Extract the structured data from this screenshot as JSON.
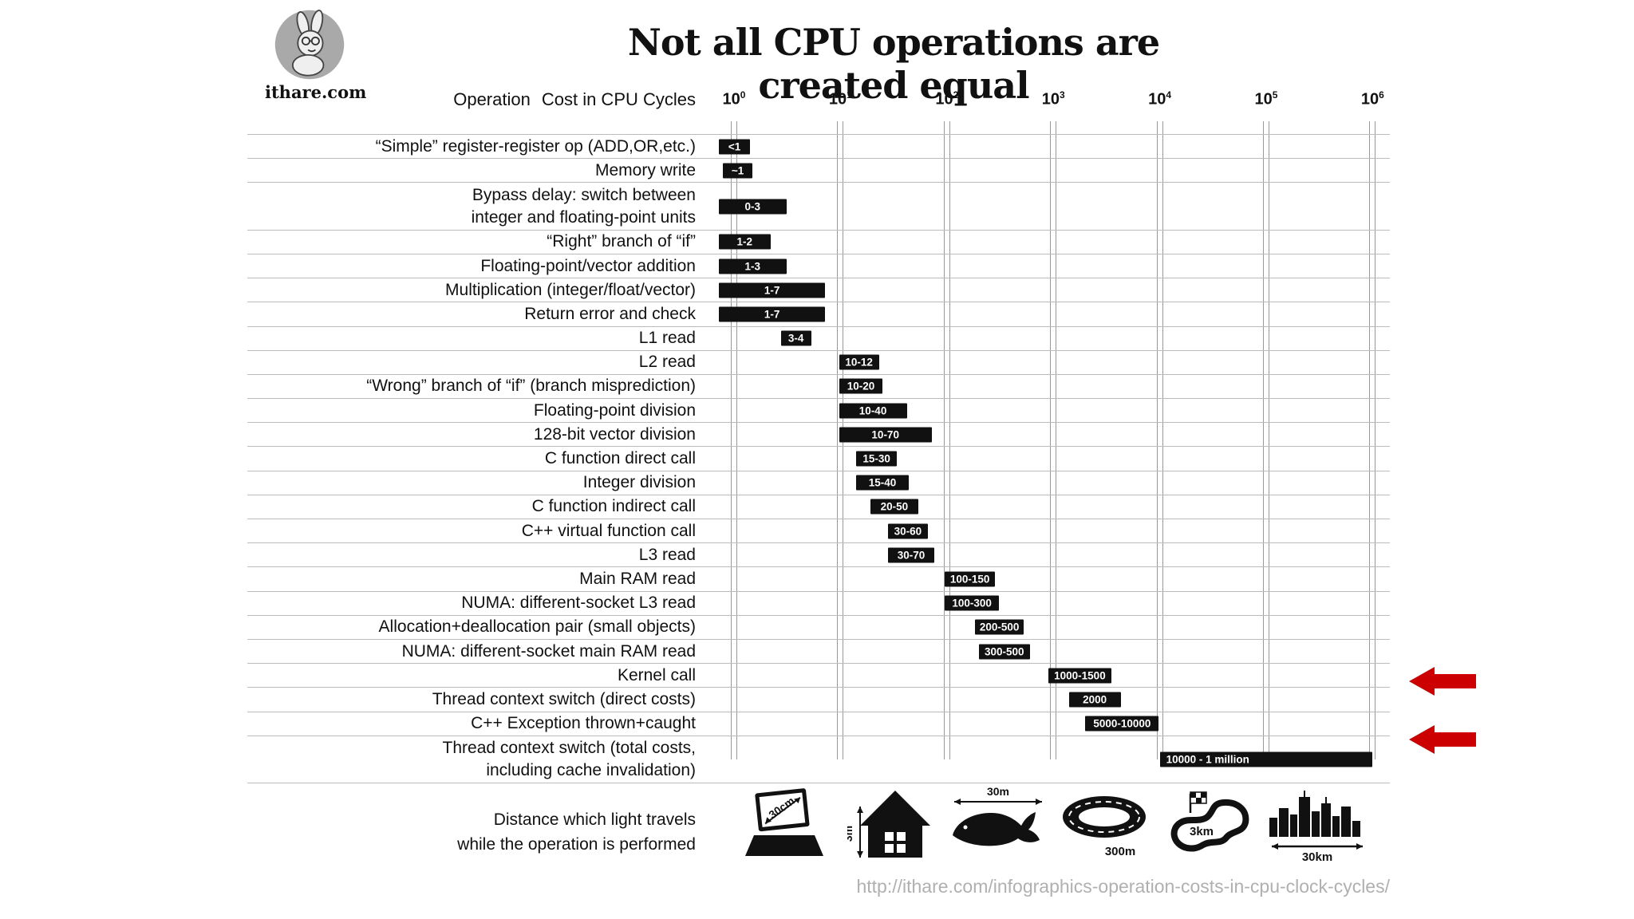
{
  "logo": {
    "text": "ithare.com"
  },
  "title": "Not all CPU operations are created equal",
  "header": {
    "operation": "Operation",
    "cost": "Cost in CPU Cycles"
  },
  "axis": {
    "base": "10",
    "exponents": [
      "0",
      "1",
      "2",
      "3",
      "4",
      "5",
      "6"
    ]
  },
  "chart_data": {
    "type": "bar",
    "orientation": "horizontal",
    "x_scale": "log10",
    "x_unit": "CPU cycles",
    "xlim": [
      1,
      1000000
    ],
    "title": "Not all CPU operations are created equal",
    "rows": [
      {
        "label": "“Simple” register-register op (ADD,OR,etc.)",
        "cost": "<1",
        "plot": [
          0.72,
          1.42
        ]
      },
      {
        "label": "Memory write",
        "cost": "~1",
        "plot": [
          0.78,
          1.5
        ]
      },
      {
        "label": "Bypass delay: switch between",
        "label2": "integer and floating-point units",
        "cost": "0-3",
        "plot": [
          0.72,
          3.1
        ]
      },
      {
        "label": "“Right” branch of “if”",
        "cost": "1-2",
        "plot": [
          0.72,
          2.2
        ]
      },
      {
        "label": "Floating-point/vector addition",
        "cost": "1-3",
        "plot": [
          0.72,
          3.1
        ]
      },
      {
        "label": "Multiplication (integer/float/vector)",
        "cost": "1-7",
        "plot": [
          0.72,
          7.2
        ]
      },
      {
        "label": "Return error and check",
        "cost": "1-7",
        "plot": [
          0.72,
          7.2
        ]
      },
      {
        "label": "L1 read",
        "cost": "3-4",
        "plot": [
          2.75,
          5.3
        ]
      },
      {
        "label": "L2 read",
        "cost": "10-12",
        "plot": [
          9.7,
          23
        ]
      },
      {
        "label": "“Wrong” branch of “if” (branch misprediction)",
        "cost": "10-20",
        "plot": [
          9.7,
          25
        ]
      },
      {
        "label": "Floating-point division",
        "cost": "10-40",
        "plot": [
          9.7,
          42
        ]
      },
      {
        "label": "128-bit vector division",
        "cost": "10-70",
        "plot": [
          9.7,
          72
        ]
      },
      {
        "label": "C function direct call",
        "cost": "15-30",
        "plot": [
          14,
          34
        ]
      },
      {
        "label": "Integer division",
        "cost": "15-40",
        "plot": [
          14,
          44
        ]
      },
      {
        "label": "C function indirect call",
        "cost": "20-50",
        "plot": [
          19,
          54
        ]
      },
      {
        "label": "C++ virtual function call",
        "cost": "30-60",
        "plot": [
          28,
          66
        ]
      },
      {
        "label": "L3 read",
        "cost": "30-70",
        "plot": [
          28,
          76
        ]
      },
      {
        "label": "Main RAM read",
        "cost": "100-150",
        "plot": [
          95,
          285
        ]
      },
      {
        "label": "NUMA: different-socket L3 read",
        "cost": "100-300",
        "plot": [
          95,
          310
        ]
      },
      {
        "label": "Allocation+deallocation pair (small objects)",
        "cost": "200-500",
        "plot": [
          185,
          525
        ]
      },
      {
        "label": "NUMA: different-socket main RAM read",
        "cost": "300-500",
        "plot": [
          200,
          600
        ]
      },
      {
        "label": "Kernel call",
        "cost": "1000-1500",
        "plot": [
          900,
          3500
        ]
      },
      {
        "label": "Thread context switch (direct costs)",
        "cost": "2000",
        "plot": [
          1400,
          4300
        ],
        "arrow": true
      },
      {
        "label": "C++ Exception thrown+caught",
        "cost": "5000-10000",
        "plot": [
          2000,
          9800
        ]
      },
      {
        "label": "Thread context switch (total costs,",
        "label2": "including cache invalidation)",
        "cost": "10000 - 1 million",
        "plot": [
          10000,
          1000000
        ],
        "arrow": true
      }
    ]
  },
  "legend": {
    "caption_line1": "Distance which light travels",
    "caption_line2": "while the operation is performed",
    "icons": [
      {
        "name": "laptop",
        "distance": "30cm"
      },
      {
        "name": "house",
        "distance": "3m"
      },
      {
        "name": "whale",
        "distance": "30m"
      },
      {
        "name": "stadium",
        "distance": "300m"
      },
      {
        "name": "racetrack",
        "distance": "3km"
      },
      {
        "name": "city-skyline",
        "distance": "30km"
      }
    ]
  },
  "footer": {
    "url": "http://ithare.com/infographics-operation-costs-in-cpu-clock-cycles/"
  },
  "colors": {
    "bar": "#111111",
    "grid": "#999999",
    "separator": "#bbbbbb",
    "arrow_red": "#cc0000",
    "url_gray": "#b0b0b0"
  }
}
